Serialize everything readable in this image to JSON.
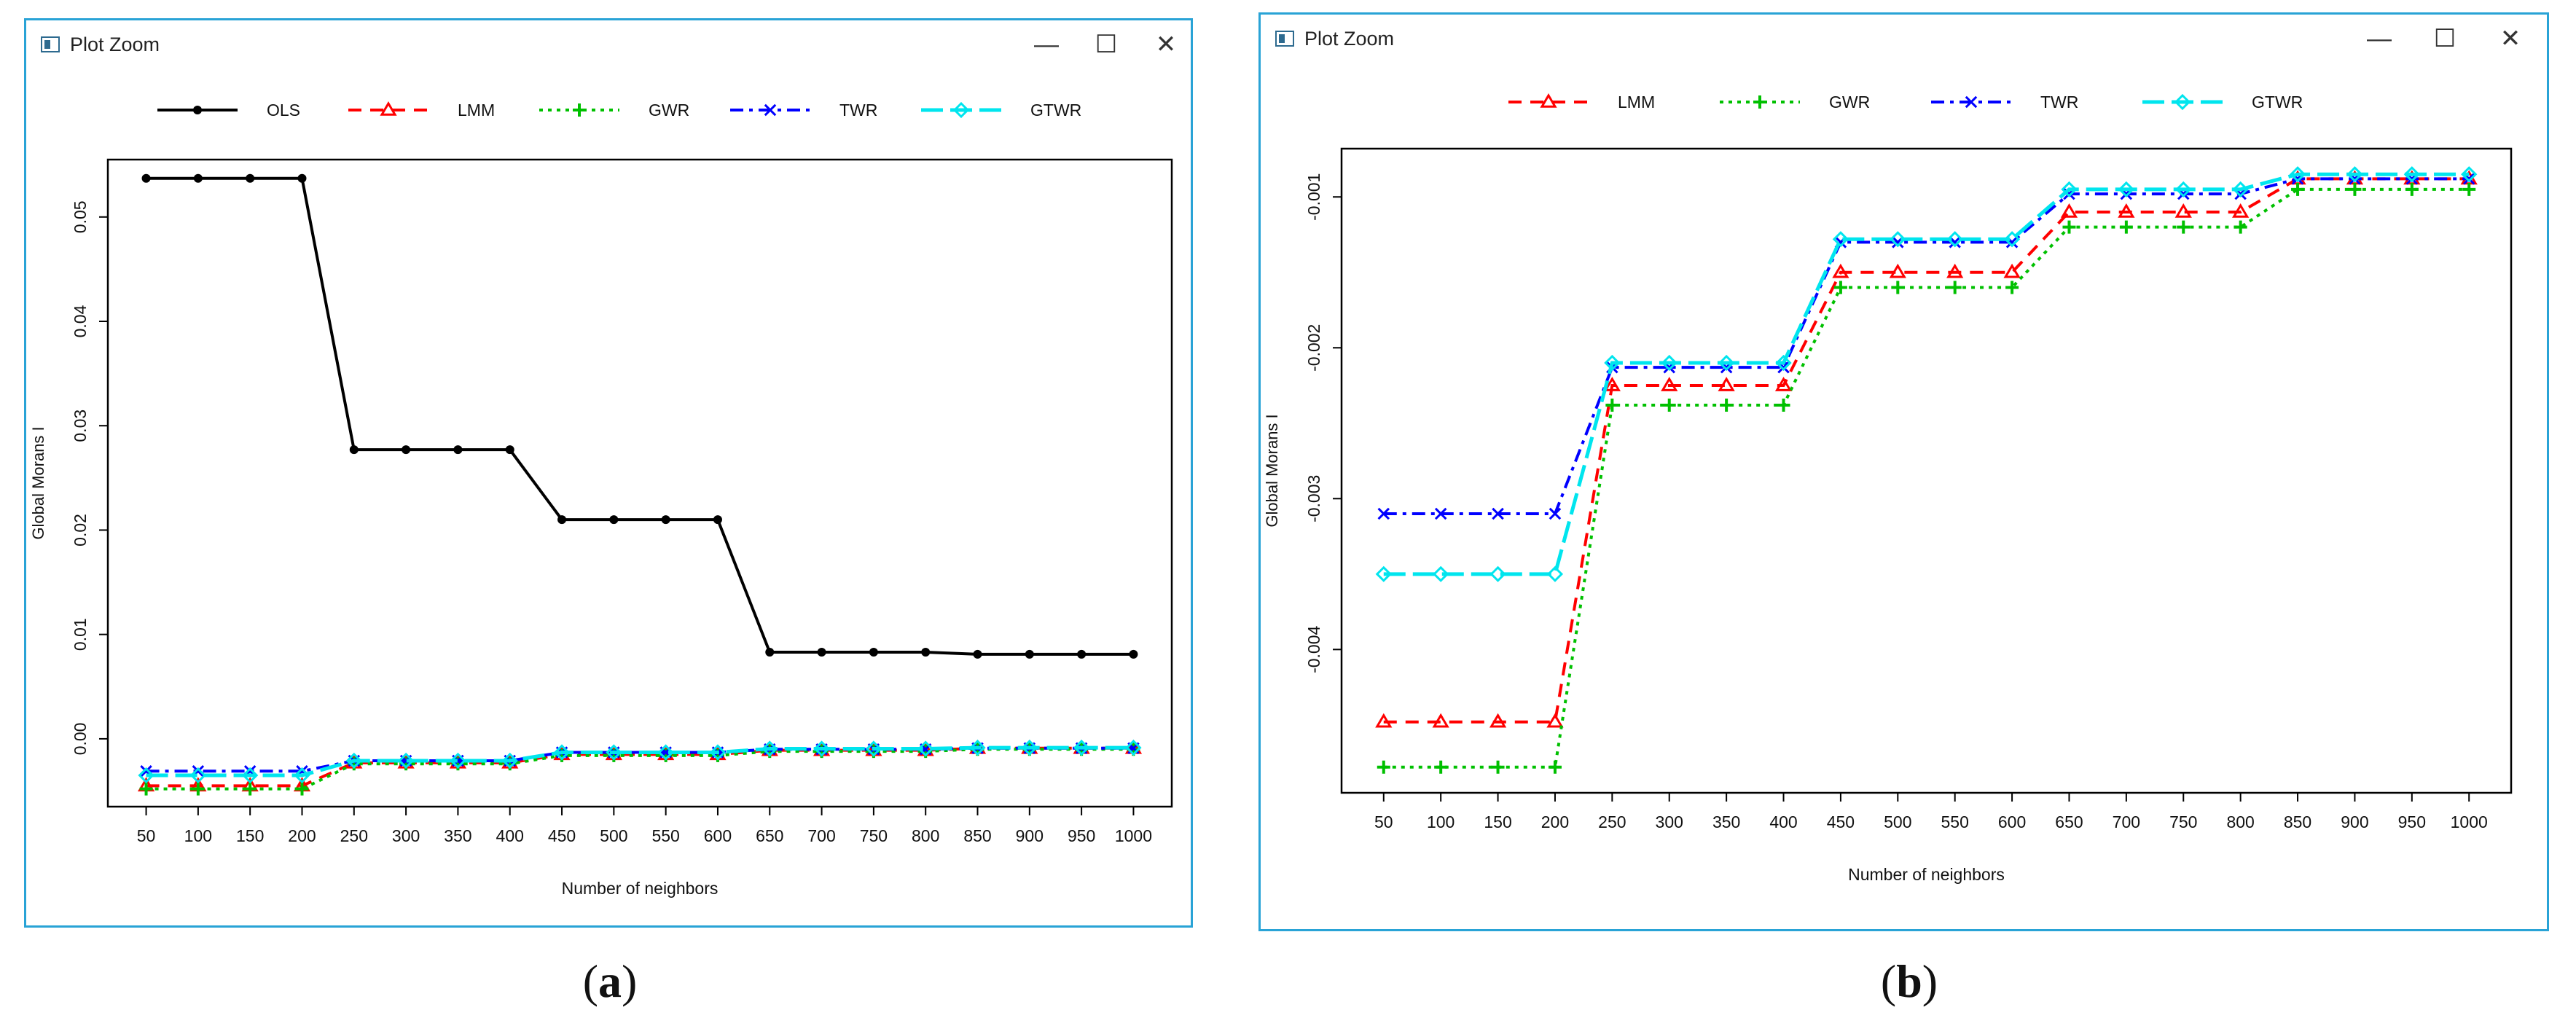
{
  "window_title": "Plot Zoom",
  "window_controls": {
    "minimize": "—",
    "maximize": "☐",
    "close": "✕"
  },
  "captions": {
    "a": {
      "open": "(",
      "letter": "a",
      "close": ")"
    },
    "b": {
      "open": "(",
      "letter": "b",
      "close": ")"
    }
  },
  "colors": {
    "OLS": "#000000",
    "LMM": "#ff0000",
    "GWR": "#00c000",
    "TWR": "#0000ff",
    "GTWR": "#00e5ee"
  },
  "chart_data": [
    {
      "id": "a",
      "type": "line",
      "title": "",
      "xlabel": "Number of neighbors",
      "ylabel": "Global Morans I",
      "categories": [
        50,
        100,
        150,
        200,
        250,
        300,
        350,
        400,
        450,
        500,
        550,
        600,
        650,
        700,
        750,
        800,
        850,
        900,
        950,
        1000
      ],
      "y_ticks": [
        0.0,
        0.01,
        0.02,
        0.03,
        0.04,
        0.05
      ],
      "y_tick_labels": [
        "0.00",
        "0.01",
        "0.02",
        "0.03",
        "0.04",
        "0.05"
      ],
      "ylim": [
        -0.0065,
        0.0555
      ],
      "legend": [
        "OLS",
        "LMM",
        "GWR",
        "TWR",
        "GTWR"
      ],
      "series": [
        {
          "name": "OLS",
          "values": [
            0.0537,
            0.0537,
            0.0537,
            0.0537,
            0.0277,
            0.0277,
            0.0277,
            0.0277,
            0.021,
            0.021,
            0.021,
            0.021,
            0.0083,
            0.0083,
            0.0083,
            0.0083,
            0.0081,
            0.0081,
            0.0081,
            0.0081
          ]
        },
        {
          "name": "LMM",
          "values": [
            -0.0045,
            -0.0045,
            -0.0045,
            -0.0045,
            -0.0023,
            -0.0023,
            -0.0023,
            -0.0023,
            -0.0015,
            -0.0015,
            -0.0015,
            -0.0015,
            -0.0011,
            -0.0011,
            -0.0011,
            -0.0011,
            -0.0009,
            -0.0009,
            -0.0009,
            -0.0009
          ]
        },
        {
          "name": "GWR",
          "values": [
            -0.0048,
            -0.0048,
            -0.0048,
            -0.0048,
            -0.0024,
            -0.0024,
            -0.0024,
            -0.0024,
            -0.0016,
            -0.0016,
            -0.0016,
            -0.0016,
            -0.0012,
            -0.0012,
            -0.0012,
            -0.0012,
            -0.001,
            -0.001,
            -0.001,
            -0.001
          ]
        },
        {
          "name": "TWR",
          "values": [
            -0.0031,
            -0.0031,
            -0.0031,
            -0.0031,
            -0.0021,
            -0.0021,
            -0.0021,
            -0.0021,
            -0.0013,
            -0.0013,
            -0.0013,
            -0.0013,
            -0.001,
            -0.001,
            -0.001,
            -0.001,
            -0.0009,
            -0.0009,
            -0.0009,
            -0.0009
          ]
        },
        {
          "name": "GTWR",
          "values": [
            -0.0035,
            -0.0035,
            -0.0035,
            -0.0035,
            -0.0021,
            -0.0021,
            -0.0021,
            -0.0021,
            -0.0013,
            -0.0013,
            -0.0013,
            -0.0013,
            -0.00095,
            -0.00095,
            -0.00095,
            -0.00095,
            -0.00085,
            -0.00085,
            -0.00085,
            -0.00085
          ]
        }
      ]
    },
    {
      "id": "b",
      "type": "line",
      "title": "",
      "xlabel": "Number of neighbors",
      "ylabel": "Global Morans I",
      "categories": [
        50,
        100,
        150,
        200,
        250,
        300,
        350,
        400,
        450,
        500,
        550,
        600,
        650,
        700,
        750,
        800,
        850,
        900,
        950,
        1000
      ],
      "y_ticks": [
        -0.004,
        -0.003,
        -0.002,
        -0.001
      ],
      "y_tick_labels": [
        "-0.004",
        "-0.003",
        "-0.002",
        "-0.001"
      ],
      "ylim": [
        -0.00495,
        -0.00068
      ],
      "legend": [
        "LMM",
        "GWR",
        "TWR",
        "GTWR"
      ],
      "series": [
        {
          "name": "LMM",
          "values": [
            -0.00448,
            -0.00448,
            -0.00448,
            -0.00448,
            -0.00225,
            -0.00225,
            -0.00225,
            -0.00225,
            -0.0015,
            -0.0015,
            -0.0015,
            -0.0015,
            -0.0011,
            -0.0011,
            -0.0011,
            -0.0011,
            -0.00088,
            -0.00088,
            -0.00088,
            -0.00088
          ]
        },
        {
          "name": "GWR",
          "values": [
            -0.00478,
            -0.00478,
            -0.00478,
            -0.00478,
            -0.00238,
            -0.00238,
            -0.00238,
            -0.00238,
            -0.0016,
            -0.0016,
            -0.0016,
            -0.0016,
            -0.0012,
            -0.0012,
            -0.0012,
            -0.0012,
            -0.00095,
            -0.00095,
            -0.00095,
            -0.00095
          ]
        },
        {
          "name": "TWR",
          "values": [
            -0.0031,
            -0.0031,
            -0.0031,
            -0.0031,
            -0.00213,
            -0.00213,
            -0.00213,
            -0.00213,
            -0.0013,
            -0.0013,
            -0.0013,
            -0.0013,
            -0.00098,
            -0.00098,
            -0.00098,
            -0.00098,
            -0.00088,
            -0.00088,
            -0.00088,
            -0.00088
          ]
        },
        {
          "name": "GTWR",
          "values": [
            -0.0035,
            -0.0035,
            -0.0035,
            -0.0035,
            -0.0021,
            -0.0021,
            -0.0021,
            -0.0021,
            -0.00128,
            -0.00128,
            -0.00128,
            -0.00128,
            -0.00095,
            -0.00095,
            -0.00095,
            -0.00095,
            -0.00085,
            -0.00085,
            -0.00085,
            -0.00085
          ]
        }
      ]
    }
  ]
}
